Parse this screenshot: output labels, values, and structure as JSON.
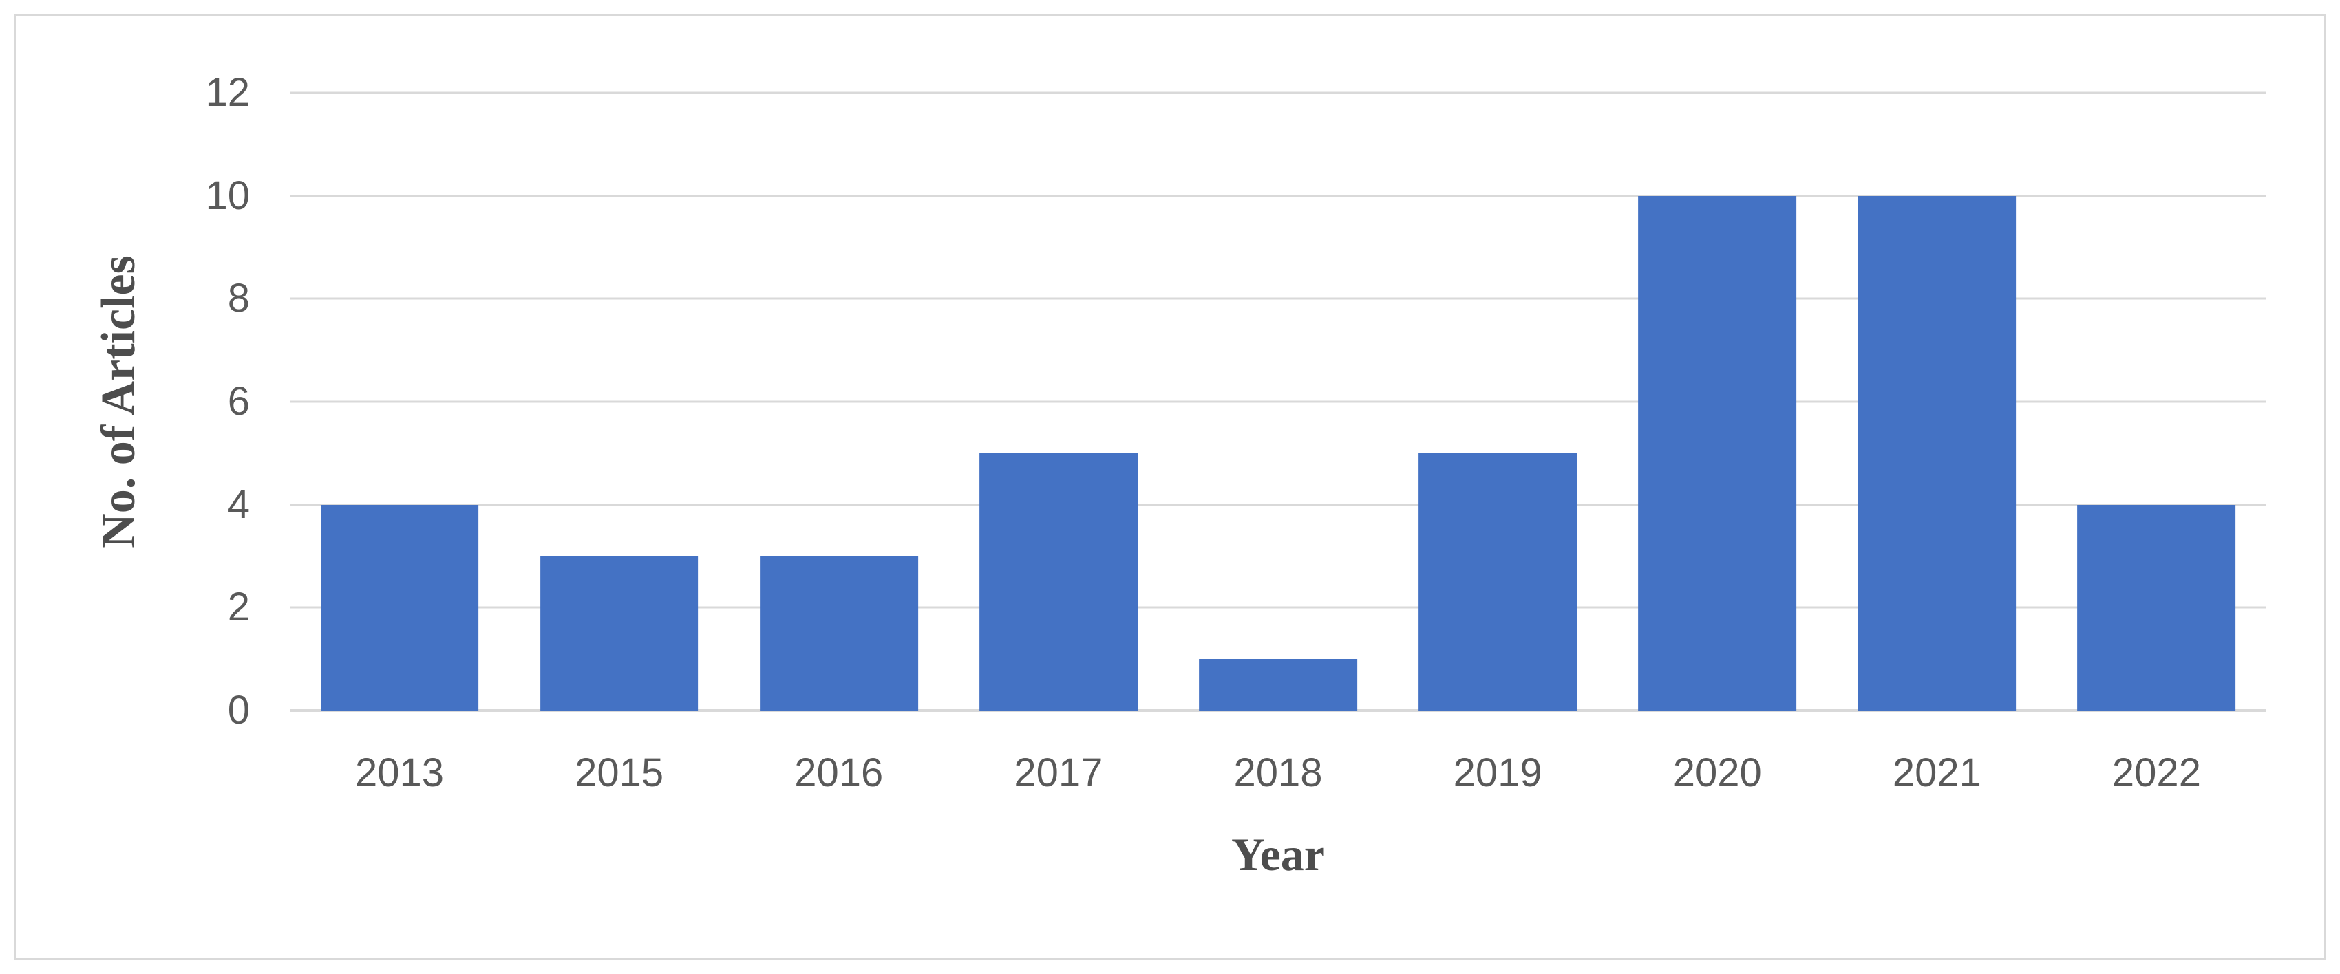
{
  "chart_data": {
    "type": "bar",
    "title": "",
    "categories": [
      "2013",
      "2015",
      "2016",
      "2017",
      "2018",
      "2019",
      "2020",
      "2021",
      "2022"
    ],
    "values": [
      4,
      3,
      3,
      5,
      1,
      5,
      10,
      10,
      4
    ],
    "xlabel": "Year",
    "ylabel": "No. of Articles",
    "yticks": [
      0,
      2,
      4,
      6,
      8,
      10,
      12
    ],
    "ylim": [
      0,
      12
    ],
    "grid": true,
    "legend": "none",
    "bar_color": "#4472C4",
    "gridline_color": "#D9D9D9",
    "tick_label_color": "#595959",
    "axis_title_color": "#4D4D4D",
    "frame_border_color": "#D9D9D9",
    "background": "#FFFFFF"
  }
}
